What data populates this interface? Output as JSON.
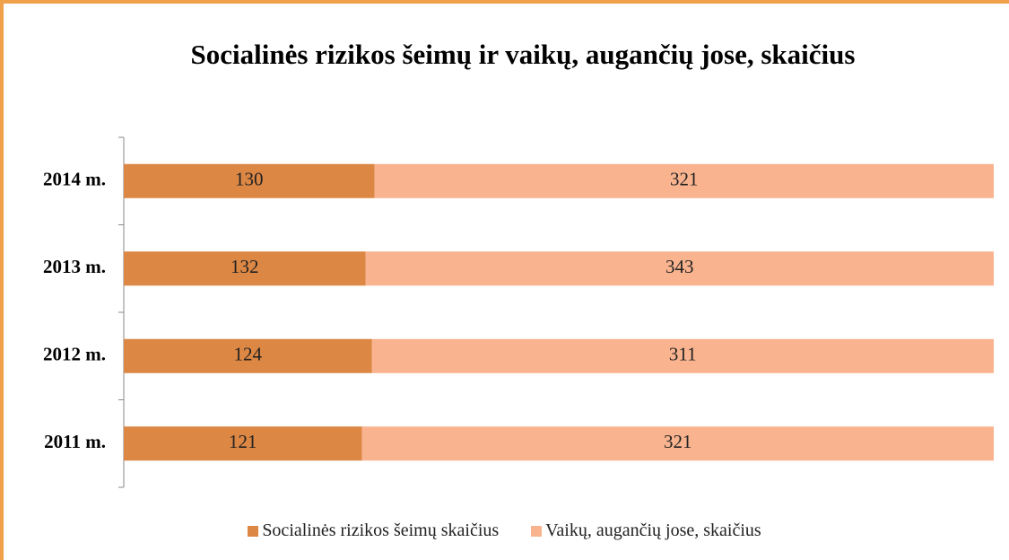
{
  "chart_data": {
    "type": "bar",
    "orientation": "horizontal",
    "stacked": "percent",
    "title": "Socialinės rizikos šeimų ir vaikų, augančių jose, skaičius",
    "categories": [
      "2014 m.",
      "2013 m.",
      "2012 m.",
      "2011 m."
    ],
    "series": [
      {
        "name": "Socialinės rizikos šeimų skaičius",
        "color": "#dc8744",
        "values": [
          130,
          132,
          124,
          121
        ]
      },
      {
        "name": "Vaikų, augančių jose, skaičius",
        "color": "#f9b48f",
        "values": [
          321,
          343,
          311,
          321
        ]
      }
    ],
    "legend": "bottom"
  }
}
